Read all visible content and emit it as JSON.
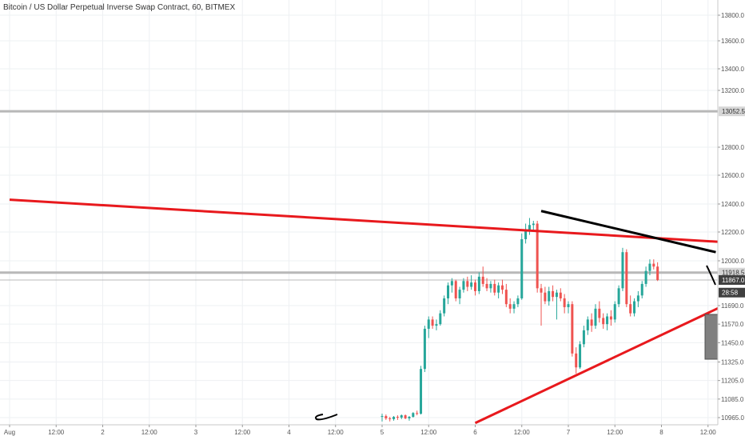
{
  "chart_data": {
    "type": "candlestick",
    "title": "Bitcoin / US Dollar Perpetual Inverse Swap Contract, 60, BITMEX",
    "price_axis": {
      "ticks": [
        "13800.0",
        "13600.0",
        "13400.0",
        "13200.0",
        "12800.0",
        "12600.0",
        "12400.0",
        "12200.0",
        "12000.0",
        "11690.0",
        "11570.0",
        "11450.0",
        "11325.0",
        "11205.0",
        "11085.0",
        "10965.0"
      ],
      "tick_values": [
        13800,
        13600,
        13400,
        13200,
        12800,
        12600,
        12400,
        12200,
        12000,
        11690,
        11570,
        11450,
        11325,
        11205,
        11085,
        10965
      ]
    },
    "time_axis": {
      "labels": [
        "Aug",
        "12:00",
        "2",
        "12:00",
        "3",
        "12:00",
        "4",
        "12:00",
        "5",
        "12:00",
        "6",
        "12:00",
        "7",
        "12:00",
        "8",
        "12:00"
      ],
      "label_positions_hours": [
        0,
        12,
        24,
        36,
        48,
        60,
        72,
        84,
        96,
        108,
        120,
        132,
        144,
        156,
        168,
        180
      ]
    },
    "price_labels": [
      {
        "text": "13052.5",
        "value": 13052.5,
        "style": "gray"
      },
      {
        "text": "11918.5",
        "value": 11918.5,
        "style": "gray"
      },
      {
        "text": "11867.0",
        "value": 11867.0,
        "style": "dark"
      },
      {
        "text": "28:58",
        "value": 11780,
        "style": "dark"
      }
    ],
    "horizontal_levels": [
      13052.5,
      11918.5,
      11867.0
    ],
    "trendlines": [
      {
        "color": "#e8191d",
        "from": [
          0,
          12430
        ],
        "to": [
          184,
          12130
        ]
      },
      {
        "color": "#e8191d",
        "from": [
          120,
          10930
        ],
        "to": [
          184,
          11690
        ]
      },
      {
        "color": "#000000",
        "from": [
          137,
          12350
        ],
        "to": [
          182,
          12060
        ]
      }
    ],
    "candles": [
      [
        96,
        10970,
        10990,
        10940,
        10975
      ],
      [
        97,
        10975,
        10985,
        10950,
        10960
      ],
      [
        98,
        10960,
        10970,
        10940,
        10955
      ],
      [
        99,
        10955,
        10975,
        10945,
        10970
      ],
      [
        100,
        10970,
        10980,
        10950,
        10965
      ],
      [
        101,
        10965,
        10985,
        10955,
        10980
      ],
      [
        102,
        10980,
        10985,
        10955,
        10960
      ],
      [
        103,
        10960,
        10975,
        10945,
        10970
      ],
      [
        104,
        10970,
        11000,
        10965,
        10995
      ],
      [
        105,
        10995,
        11010,
        10980,
        10990
      ],
      [
        106,
        10990,
        11300,
        10985,
        11280
      ],
      [
        107,
        11280,
        11560,
        11260,
        11540
      ],
      [
        108,
        11540,
        11620,
        11480,
        11600
      ],
      [
        109,
        11600,
        11620,
        11540,
        11560
      ],
      [
        110,
        11560,
        11600,
        11530,
        11570
      ],
      [
        111,
        11570,
        11660,
        11560,
        11640
      ],
      [
        112,
        11640,
        11760,
        11620,
        11740
      ],
      [
        113,
        11740,
        11850,
        11700,
        11830
      ],
      [
        114,
        11830,
        11880,
        11780,
        11860
      ],
      [
        115,
        11860,
        11870,
        11720,
        11740
      ],
      [
        116,
        11740,
        11820,
        11700,
        11800
      ],
      [
        117,
        11800,
        11880,
        11780,
        11860
      ],
      [
        118,
        11860,
        11890,
        11790,
        11820
      ],
      [
        119,
        11820,
        11900,
        11800,
        11850
      ],
      [
        120,
        11850,
        11870,
        11760,
        11790
      ],
      [
        121,
        11790,
        11920,
        11770,
        11890
      ],
      [
        122,
        11890,
        11960,
        11820,
        11840
      ],
      [
        123,
        11840,
        11880,
        11790,
        11810
      ],
      [
        124,
        11810,
        11860,
        11780,
        11840
      ],
      [
        125,
        11840,
        11870,
        11760,
        11780
      ],
      [
        126,
        11780,
        11850,
        11740,
        11830
      ],
      [
        127,
        11830,
        11870,
        11770,
        11800
      ],
      [
        128,
        11800,
        11840,
        11680,
        11700
      ],
      [
        129,
        11700,
        11740,
        11640,
        11670
      ],
      [
        130,
        11670,
        11720,
        11640,
        11700
      ],
      [
        131,
        11700,
        11760,
        11680,
        11740
      ],
      [
        132,
        11740,
        12190,
        11730,
        12150
      ],
      [
        133,
        12150,
        12260,
        12120,
        12210
      ],
      [
        134,
        12210,
        12300,
        12180,
        12250
      ],
      [
        135,
        12250,
        12280,
        12200,
        12260
      ],
      [
        136,
        12260,
        12280,
        11780,
        11810
      ],
      [
        137,
        11810,
        11840,
        11560,
        11780
      ],
      [
        138,
        11780,
        11820,
        11700,
        11720
      ],
      [
        139,
        11720,
        11820,
        11690,
        11790
      ],
      [
        140,
        11790,
        11830,
        11720,
        11750
      ],
      [
        141,
        11750,
        11800,
        11600,
        11780
      ],
      [
        142,
        11780,
        11810,
        11720,
        11740
      ],
      [
        143,
        11740,
        11770,
        11640,
        11680
      ],
      [
        144,
        11680,
        11720,
        11640,
        11700
      ],
      [
        145,
        11700,
        11720,
        11360,
        11380
      ],
      [
        146,
        11380,
        11420,
        11250,
        11290
      ],
      [
        147,
        11290,
        11460,
        11280,
        11440
      ],
      [
        148,
        11440,
        11560,
        11420,
        11530
      ],
      [
        149,
        11530,
        11620,
        11500,
        11600
      ],
      [
        150,
        11600,
        11640,
        11520,
        11560
      ],
      [
        151,
        11560,
        11700,
        11540,
        11670
      ],
      [
        152,
        11670,
        11720,
        11580,
        11610
      ],
      [
        153,
        11610,
        11640,
        11540,
        11570
      ],
      [
        154,
        11570,
        11640,
        11530,
        11620
      ],
      [
        155,
        11620,
        11660,
        11560,
        11600
      ],
      [
        156,
        11600,
        11720,
        11580,
        11700
      ],
      [
        157,
        11700,
        11830,
        11680,
        11810
      ],
      [
        158,
        11810,
        12090,
        11790,
        12060
      ],
      [
        159,
        12060,
        12080,
        11680,
        11700
      ],
      [
        160,
        11700,
        11760,
        11620,
        11640
      ],
      [
        161,
        11640,
        11740,
        11620,
        11720
      ],
      [
        162,
        11720,
        11790,
        11680,
        11760
      ],
      [
        163,
        11760,
        11860,
        11740,
        11840
      ],
      [
        164,
        11840,
        11960,
        11820,
        11930
      ],
      [
        165,
        11930,
        12010,
        11900,
        11980
      ],
      [
        166,
        11980,
        12010,
        11940,
        11960
      ],
      [
        167,
        11960,
        11990,
        11860,
        11867
      ]
    ],
    "grid": true,
    "up_color": "#26a69a",
    "down_color": "#ef5350"
  }
}
